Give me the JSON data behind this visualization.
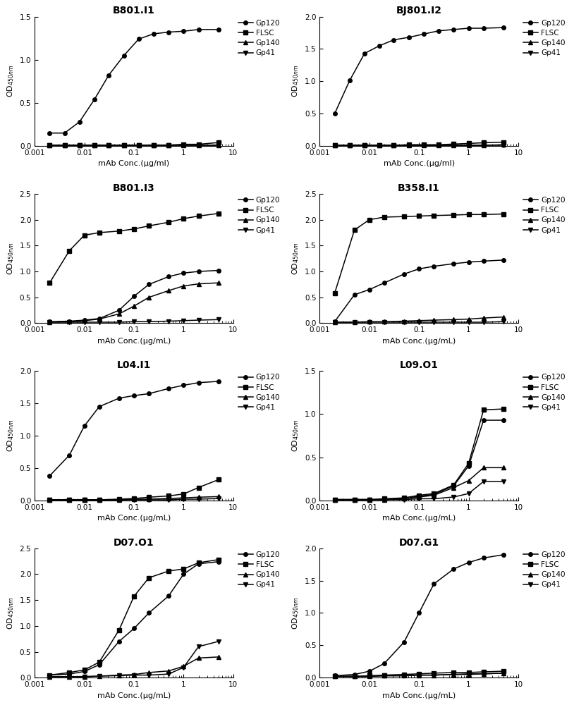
{
  "subplots": [
    {
      "title": "B801.I1",
      "xlabel": "mAb Conc.(μg/ml)",
      "ylim": [
        0,
        1.5
      ],
      "yticks": [
        0.0,
        0.5,
        1.0,
        1.5
      ],
      "x": [
        0.002,
        0.004,
        0.008,
        0.016,
        0.031,
        0.063,
        0.125,
        0.25,
        0.5,
        1.0,
        2.0,
        5.0
      ],
      "Gp120": [
        0.15,
        0.15,
        0.28,
        0.54,
        0.82,
        1.05,
        1.24,
        1.3,
        1.32,
        1.33,
        1.35,
        1.35
      ],
      "FLSC": [
        0.01,
        0.01,
        0.01,
        0.01,
        0.01,
        0.01,
        0.01,
        0.01,
        0.01,
        0.02,
        0.02,
        0.04
      ],
      "Gp140": [
        0.01,
        0.01,
        0.01,
        0.01,
        0.01,
        0.01,
        0.01,
        0.01,
        0.01,
        0.01,
        0.01,
        0.01
      ],
      "Gp41": [
        0.01,
        0.01,
        0.01,
        0.01,
        0.01,
        0.01,
        0.01,
        0.01,
        0.01,
        0.01,
        0.01,
        0.01
      ]
    },
    {
      "title": "BJ801.I2",
      "xlabel": "mAb Conc.(μg/ml)",
      "ylim": [
        0,
        2.0
      ],
      "yticks": [
        0.0,
        0.5,
        1.0,
        1.5,
        2.0
      ],
      "x": [
        0.002,
        0.004,
        0.008,
        0.016,
        0.031,
        0.063,
        0.125,
        0.25,
        0.5,
        1.0,
        2.0,
        5.0
      ],
      "Gp120": [
        0.5,
        1.01,
        1.43,
        1.55,
        1.64,
        1.68,
        1.73,
        1.78,
        1.8,
        1.82,
        1.82,
        1.83
      ],
      "FLSC": [
        0.01,
        0.01,
        0.01,
        0.01,
        0.01,
        0.02,
        0.02,
        0.02,
        0.03,
        0.04,
        0.05,
        0.06
      ],
      "Gp140": [
        0.01,
        0.01,
        0.01,
        0.01,
        0.01,
        0.01,
        0.01,
        0.01,
        0.01,
        0.01,
        0.01,
        0.02
      ],
      "Gp41": [
        0.01,
        0.01,
        0.01,
        0.01,
        0.01,
        0.01,
        0.01,
        0.01,
        0.01,
        0.01,
        0.01,
        0.01
      ]
    },
    {
      "title": "B801.I3",
      "xlabel": "mAb Conc.(μg/mL)",
      "ylim": [
        0,
        2.5
      ],
      "yticks": [
        0.0,
        0.5,
        1.0,
        1.5,
        2.0,
        2.5
      ],
      "x": [
        0.002,
        0.005,
        0.01,
        0.02,
        0.05,
        0.1,
        0.2,
        0.5,
        1.0,
        2.0,
        5.0
      ],
      "Gp120": [
        0.03,
        0.04,
        0.06,
        0.09,
        0.25,
        0.52,
        0.75,
        0.9,
        0.97,
        1.0,
        1.02
      ],
      "FLSC": [
        0.78,
        1.4,
        1.7,
        1.75,
        1.78,
        1.82,
        1.88,
        1.95,
        2.02,
        2.07,
        2.12
      ],
      "Gp140": [
        0.02,
        0.03,
        0.05,
        0.08,
        0.18,
        0.33,
        0.5,
        0.63,
        0.72,
        0.76,
        0.78
      ],
      "Gp41": [
        0.02,
        0.02,
        0.02,
        0.02,
        0.02,
        0.03,
        0.03,
        0.04,
        0.05,
        0.06,
        0.07
      ]
    },
    {
      "title": "B358.I1",
      "xlabel": "mAb Conc.(μg/mL)",
      "ylim": [
        0,
        2.5
      ],
      "yticks": [
        0.0,
        0.5,
        1.0,
        1.5,
        2.0,
        2.5
      ],
      "x": [
        0.002,
        0.005,
        0.01,
        0.02,
        0.05,
        0.1,
        0.2,
        0.5,
        1.0,
        2.0,
        5.0
      ],
      "Gp120": [
        0.03,
        0.55,
        0.65,
        0.78,
        0.95,
        1.05,
        1.1,
        1.15,
        1.18,
        1.2,
        1.22
      ],
      "FLSC": [
        0.58,
        1.8,
        2.0,
        2.05,
        2.06,
        2.07,
        2.08,
        2.09,
        2.1,
        2.1,
        2.11
      ],
      "Gp140": [
        0.02,
        0.02,
        0.03,
        0.03,
        0.04,
        0.05,
        0.06,
        0.07,
        0.08,
        0.1,
        0.12
      ],
      "Gp41": [
        0.02,
        0.02,
        0.02,
        0.02,
        0.02,
        0.02,
        0.02,
        0.02,
        0.02,
        0.02,
        0.03
      ]
    },
    {
      "title": "L04.I1",
      "xlabel": "mAb Conc.(μg/mL)",
      "ylim": [
        0,
        2.0
      ],
      "yticks": [
        0.0,
        0.5,
        1.0,
        1.5,
        2.0
      ],
      "x": [
        0.002,
        0.005,
        0.01,
        0.02,
        0.05,
        0.1,
        0.2,
        0.5,
        1.0,
        2.0,
        5.0
      ],
      "Gp120": [
        0.38,
        0.7,
        1.15,
        1.45,
        1.58,
        1.62,
        1.65,
        1.73,
        1.78,
        1.82,
        1.84
      ],
      "FLSC": [
        0.01,
        0.01,
        0.01,
        0.01,
        0.02,
        0.03,
        0.05,
        0.07,
        0.1,
        0.2,
        0.32
      ],
      "Gp140": [
        0.01,
        0.01,
        0.01,
        0.01,
        0.01,
        0.02,
        0.02,
        0.03,
        0.04,
        0.05,
        0.06
      ],
      "Gp41": [
        0.01,
        0.01,
        0.01,
        0.01,
        0.01,
        0.01,
        0.01,
        0.01,
        0.02,
        0.02,
        0.03
      ]
    },
    {
      "title": "L09.O1",
      "xlabel": "mAb Conc.(μg/mL)",
      "ylim": [
        0,
        1.5
      ],
      "yticks": [
        0.0,
        0.5,
        1.0,
        1.5
      ],
      "x": [
        0.002,
        0.005,
        0.01,
        0.02,
        0.05,
        0.1,
        0.2,
        0.5,
        1.0,
        2.0,
        5.0
      ],
      "Gp120": [
        0.01,
        0.01,
        0.01,
        0.01,
        0.02,
        0.05,
        0.07,
        0.17,
        0.4,
        0.93,
        0.93
      ],
      "FLSC": [
        0.01,
        0.01,
        0.01,
        0.02,
        0.03,
        0.06,
        0.08,
        0.18,
        0.43,
        1.05,
        1.06
      ],
      "Gp140": [
        0.01,
        0.01,
        0.01,
        0.01,
        0.02,
        0.04,
        0.06,
        0.15,
        0.23,
        0.38,
        0.38
      ],
      "Gp41": [
        0.01,
        0.01,
        0.01,
        0.01,
        0.01,
        0.02,
        0.02,
        0.04,
        0.08,
        0.22,
        0.22
      ]
    },
    {
      "title": "D07.O1",
      "xlabel": "mAb Conc.(μg/mL)",
      "ylim": [
        0,
        2.5
      ],
      "yticks": [
        0.0,
        0.5,
        1.0,
        1.5,
        2.0,
        2.5
      ],
      "x": [
        0.002,
        0.005,
        0.01,
        0.02,
        0.05,
        0.1,
        0.2,
        0.5,
        1.0,
        2.0,
        5.0
      ],
      "Gp120": [
        0.05,
        0.07,
        0.12,
        0.25,
        0.7,
        0.95,
        1.25,
        1.58,
        2.0,
        2.2,
        2.24
      ],
      "FLSC": [
        0.05,
        0.1,
        0.15,
        0.3,
        0.92,
        1.57,
        1.93,
        2.06,
        2.1,
        2.22,
        2.28
      ],
      "Gp140": [
        0.02,
        0.02,
        0.02,
        0.03,
        0.05,
        0.06,
        0.1,
        0.13,
        0.22,
        0.38,
        0.4
      ],
      "Gp41": [
        0.02,
        0.02,
        0.02,
        0.03,
        0.04,
        0.05,
        0.05,
        0.07,
        0.2,
        0.6,
        0.7
      ]
    },
    {
      "title": "D07.G1",
      "xlabel": "mAb Conc.(μg/mL)",
      "ylim": [
        0,
        2.0
      ],
      "yticks": [
        0.0,
        0.5,
        1.0,
        1.5,
        2.0
      ],
      "x": [
        0.002,
        0.005,
        0.01,
        0.02,
        0.05,
        0.1,
        0.2,
        0.5,
        1.0,
        2.0,
        5.0
      ],
      "Gp120": [
        0.03,
        0.05,
        0.1,
        0.22,
        0.55,
        1.0,
        1.45,
        1.68,
        1.78,
        1.85,
        1.9
      ],
      "FLSC": [
        0.02,
        0.02,
        0.03,
        0.04,
        0.05,
        0.06,
        0.07,
        0.08,
        0.08,
        0.09,
        0.1
      ],
      "Gp140": [
        0.02,
        0.02,
        0.02,
        0.03,
        0.03,
        0.04,
        0.04,
        0.05,
        0.05,
        0.06,
        0.07
      ],
      "Gp41": [
        0.02,
        0.02,
        0.02,
        0.03,
        0.03,
        0.04,
        0.04,
        0.05,
        0.06,
        0.06,
        0.07
      ]
    }
  ],
  "series_names": [
    "Gp120",
    "FLSC",
    "Gp140",
    "Gp41"
  ],
  "markers": {
    "Gp120": "o",
    "FLSC": "s",
    "Gp140": "^",
    "Gp41": "v"
  },
  "color": "#000000",
  "xlim": [
    0.001,
    10
  ],
  "xticks": [
    0.001,
    0.01,
    0.1,
    1,
    10
  ],
  "xticklabels": [
    "0.001",
    "0.01",
    "0.1",
    "1",
    "10"
  ],
  "markersize": 4,
  "linewidth": 1.1,
  "fontsize_title": 10,
  "fontsize_axis_label": 8,
  "fontsize_tick": 7.5,
  "fontsize_legend": 7.5
}
